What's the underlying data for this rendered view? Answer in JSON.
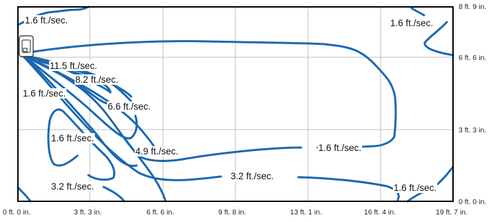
{
  "axes": {
    "x_ticks": [
      "0 ft. 0 in.",
      "3 ft. 3 in.",
      "6 ft. 6 in.",
      "9 ft. 8 in.",
      "13 ft. 1 in.",
      "16 ft. 4 in.",
      "19 ft. 7 in."
    ],
    "y_ticks": [
      "8 ft. 9 in.",
      "6 ft. 6 in.",
      "3 ft. 3 in.",
      "0 ft. 0 in."
    ]
  },
  "labels": [
    "1.6 ft./sec.",
    "1.6 ft./sec.",
    "11.5 ft./sec.",
    "8.2 ft./sec.",
    "1.6 ft./sec.",
    "6.6 ft./sec.",
    "1.6 ft./sec.",
    "4.9 ft./sec.",
    "1.6 ft./sec.",
    "3.2 ft./sec.",
    "3.2 ft./sec.",
    "1.6 ft./sec."
  ],
  "colors": {
    "contour": "#1a68b0",
    "frame": "#000000",
    "grid": "#bfbfbf"
  },
  "icons": {
    "unit": "air-conditioner-unit-icon"
  }
}
